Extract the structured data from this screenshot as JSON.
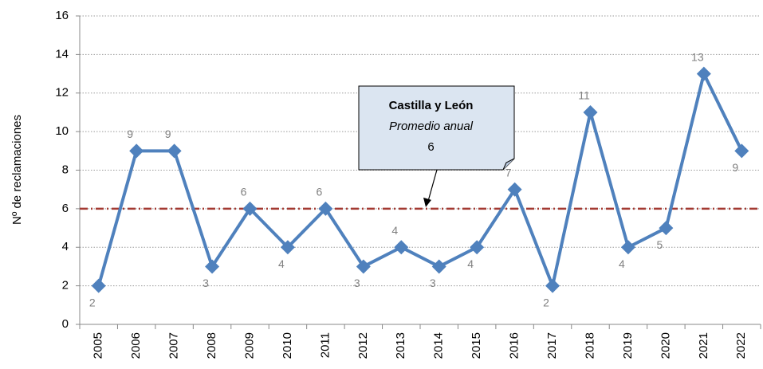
{
  "chart_data": {
    "type": "line",
    "y_label": "Nº de reclamaciones",
    "categories": [
      "2005",
      "2006",
      "2007",
      "2008",
      "2009",
      "2010",
      "2011",
      "2012",
      "2013",
      "2014",
      "2015",
      "2016",
      "2017",
      "2018",
      "2019",
      "2020",
      "2021",
      "2022"
    ],
    "series": [
      {
        "color": "#4f81bd",
        "values": [
          2,
          9,
          9,
          3,
          6,
          4,
          6,
          3,
          4,
          3,
          4,
          7,
          2,
          11,
          4,
          5,
          13,
          9
        ]
      }
    ],
    "ylim": [
      0,
      16
    ],
    "yticks": [
      0,
      2,
      4,
      6,
      8,
      10,
      12,
      14,
      16
    ],
    "grid": true,
    "average": {
      "value": 6,
      "color": "#a33a32",
      "title": "Castilla y León",
      "subtitle": "Promedio anual"
    }
  }
}
